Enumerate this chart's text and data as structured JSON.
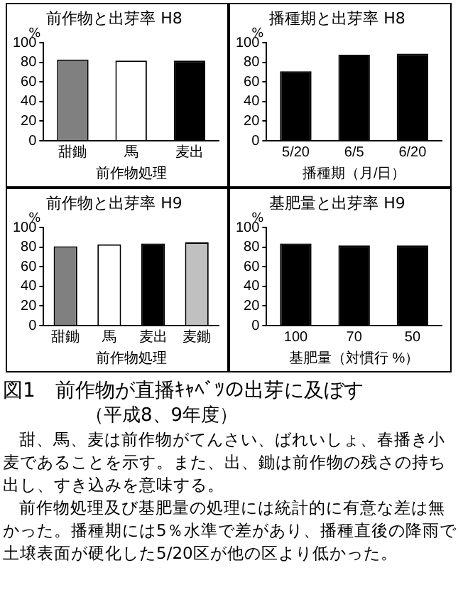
{
  "chart_data": [
    {
      "type": "bar",
      "title": "前作物と出芽率 H8",
      "ylabel": "%",
      "xlabel": "前作物処理",
      "categories": [
        "甜鋤",
        "馬",
        "麦出"
      ],
      "values": [
        83,
        82,
        82
      ],
      "colors": [
        "#808080",
        "#ffffff",
        "#000000"
      ],
      "ylim": [
        0,
        100
      ],
      "yticks": [
        0,
        20,
        40,
        60,
        80,
        100
      ],
      "grid": false,
      "legend": false
    },
    {
      "type": "bar",
      "title": "播種期と出芽率 H8",
      "ylabel": "%",
      "xlabel": "播種期（月/日）",
      "categories": [
        "5/20",
        "6/5",
        "6/20"
      ],
      "values": [
        71,
        88,
        89
      ],
      "colors": [
        "#000000",
        "#000000",
        "#000000"
      ],
      "ylim": [
        0,
        100
      ],
      "yticks": [
        0,
        20,
        40,
        60,
        80,
        100
      ],
      "grid": false,
      "legend": false
    },
    {
      "type": "bar",
      "title": "前作物と出芽率 H9",
      "ylabel": "%",
      "xlabel": "前作物処理",
      "categories": [
        "甜鋤",
        "馬",
        "麦出",
        "麦鋤"
      ],
      "values": [
        81,
        83,
        84,
        85
      ],
      "colors": [
        "#808080",
        "#ffffff",
        "#000000",
        "#c0c0c0"
      ],
      "ylim": [
        0,
        100
      ],
      "yticks": [
        0,
        20,
        40,
        60,
        80,
        100
      ],
      "grid": false,
      "legend": false
    },
    {
      "type": "bar",
      "title": "基肥量と出芽率 H9",
      "ylabel": "%",
      "xlabel": "基肥量（対慣行 %）",
      "categories": [
        "100",
        "70",
        "50"
      ],
      "values": [
        84,
        82,
        82
      ],
      "colors": [
        "#000000",
        "#000000",
        "#000000"
      ],
      "ylim": [
        0,
        100
      ],
      "yticks": [
        0,
        20,
        40,
        60,
        80,
        100
      ],
      "grid": false,
      "legend": false
    },
    {
      "type": "other",
      "title": "図1　前作物が直播ｷｬﾍﾞﾂの出芽に及ぼす",
      "subtitle": "（平成8、9年度）",
      "annotations": [
        "甜、馬、麦は前作物がてんさい、ばれいしょ、春播き小麦であることを示す。また、出、鋤は前作物の残さの持ち出し、すき込みを意味する。",
        "前作物処理及び基肥量の処理には統計的に有意な差は無かった。播種期には5％水準で差があり、播種直後の降雨で土壌表面が硬化した5/20区が他の区より低かった。"
      ]
    }
  ]
}
